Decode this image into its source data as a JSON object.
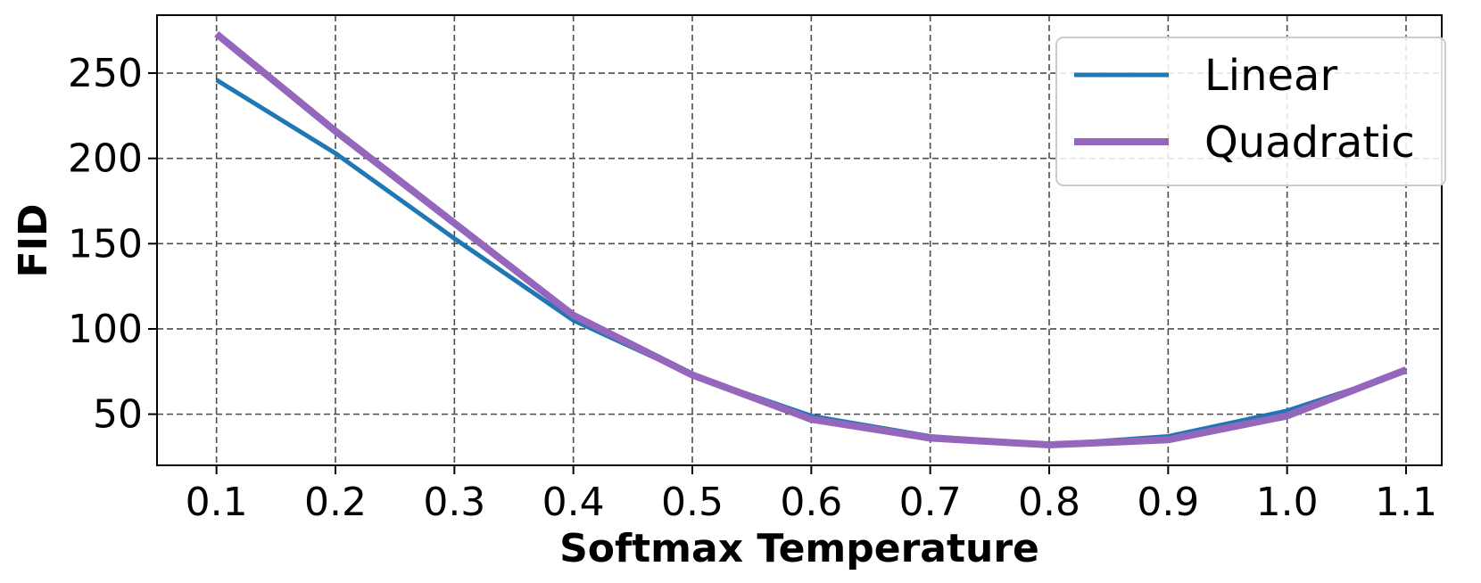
{
  "chart_data": {
    "type": "line",
    "title": "",
    "xlabel": "Softmax Temperature",
    "ylabel": "FID",
    "x": [
      0.1,
      0.2,
      0.3,
      0.4,
      0.5,
      0.6,
      0.7,
      0.8,
      0.9,
      1.0,
      1.1
    ],
    "x_tick_labels": [
      "0.1",
      "0.2",
      "0.3",
      "0.4",
      "0.5",
      "0.6",
      "0.7",
      "0.8",
      "0.9",
      "1.0",
      "1.1"
    ],
    "y_ticks": [
      50,
      100,
      150,
      200,
      250
    ],
    "y_tick_labels": [
      "50",
      "100",
      "150",
      "200",
      "250"
    ],
    "xlim": [
      0.05,
      1.13
    ],
    "ylim": [
      20,
      284
    ],
    "grid": true,
    "legend_position": "top-right",
    "series": [
      {
        "name": "Linear",
        "color": "#1f77b4",
        "values": [
          246,
          203,
          153,
          105,
          73,
          49,
          37,
          32,
          37,
          52,
          75
        ]
      },
      {
        "name": "Quadratic",
        "color": "#9467bd",
        "values": [
          273,
          216,
          162,
          108,
          73,
          47,
          36,
          32,
          35,
          49,
          76
        ]
      }
    ]
  }
}
